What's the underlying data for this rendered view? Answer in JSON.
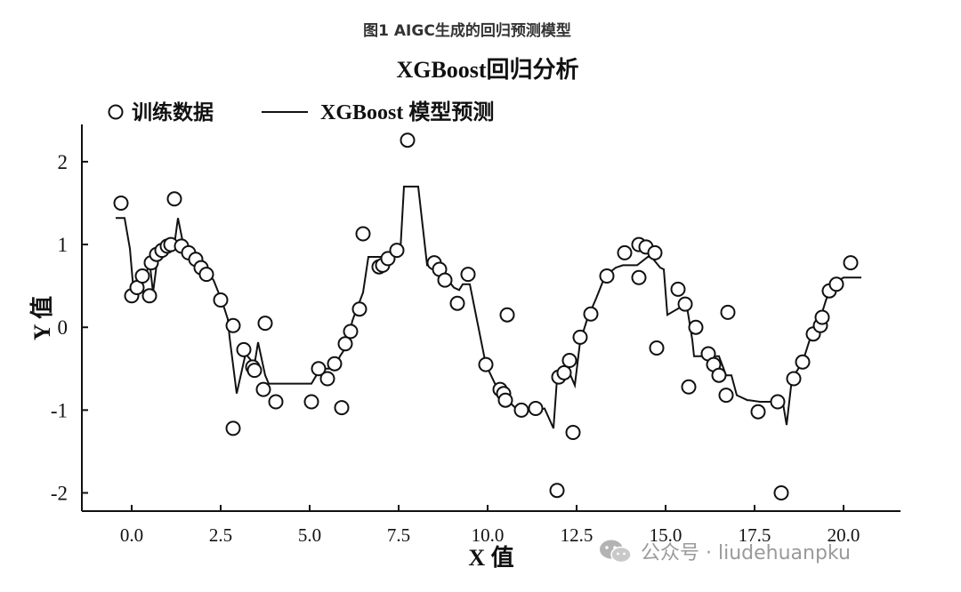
{
  "figure_caption": "图1 AIGC生成的回归预测模型",
  "watermark": "公众号 · liudehuanpku",
  "chart_data": {
    "type": "scatter",
    "title": "XGBoost回归分析",
    "xlabel": "X 值",
    "ylabel": "Y 值",
    "xlim": [
      -1.4,
      21.6
    ],
    "ylim": [
      -2.22,
      2.45
    ],
    "xticks": [
      "0.0",
      "2.5",
      "5.0",
      "7.5",
      "10.0",
      "12.5",
      "15.0",
      "17.5",
      "20.0"
    ],
    "xtick_values": [
      0,
      2.5,
      5,
      7.5,
      10,
      12.5,
      15,
      17.5,
      20
    ],
    "yticks": [
      "2",
      "1",
      "0",
      "-1",
      "-2"
    ],
    "ytick_values": [
      2,
      1,
      0,
      -1,
      -2
    ],
    "grid": false,
    "legend_position": "top-left",
    "series": [
      {
        "name": "训练数据",
        "kind": "scatter",
        "x": [
          -0.3,
          0.0,
          0.15,
          0.3,
          0.5,
          0.55,
          0.7,
          0.85,
          1.0,
          1.1,
          1.2,
          1.4,
          1.6,
          1.8,
          1.95,
          2.1,
          2.5,
          2.85,
          2.85,
          3.15,
          3.4,
          3.45,
          3.7,
          3.75,
          4.05,
          5.05,
          5.25,
          5.5,
          5.7,
          5.9,
          6.0,
          6.15,
          6.4,
          6.5,
          6.95,
          7.05,
          7.2,
          7.45,
          7.75,
          8.5,
          8.65,
          8.8,
          9.15,
          9.45,
          9.95,
          10.35,
          10.45,
          10.5,
          10.55,
          10.95,
          11.35,
          11.95,
          12.0,
          12.15,
          12.3,
          12.4,
          12.6,
          12.9,
          13.35,
          13.85,
          14.25,
          14.25,
          14.45,
          14.7,
          14.75,
          15.35,
          15.55,
          15.65,
          15.85,
          16.2,
          16.35,
          16.5,
          16.7,
          16.75,
          17.6,
          18.15,
          18.25,
          18.6,
          18.85,
          19.15,
          19.35,
          19.4,
          19.6,
          19.8,
          20.2
        ],
        "y": [
          1.5,
          0.38,
          0.48,
          0.62,
          0.38,
          0.78,
          0.88,
          0.93,
          0.98,
          1.0,
          1.55,
          0.98,
          0.9,
          0.82,
          0.72,
          0.64,
          0.33,
          0.02,
          -1.22,
          -0.27,
          -0.48,
          -0.52,
          -0.75,
          0.05,
          -0.9,
          -0.9,
          -0.5,
          -0.62,
          -0.44,
          -0.97,
          -0.2,
          -0.05,
          0.22,
          1.13,
          0.73,
          0.75,
          0.83,
          0.93,
          2.26,
          0.78,
          0.7,
          0.57,
          0.29,
          0.64,
          -0.45,
          -0.75,
          -0.8,
          -0.88,
          0.15,
          -1.0,
          -0.98,
          -1.97,
          -0.6,
          -0.55,
          -0.4,
          -1.27,
          -0.12,
          0.16,
          0.62,
          0.9,
          1.0,
          0.6,
          0.97,
          0.9,
          -0.25,
          0.46,
          0.28,
          -0.72,
          0.0,
          -0.32,
          -0.45,
          -0.58,
          -0.82,
          0.18,
          -1.02,
          -0.9,
          -2.0,
          -0.62,
          -0.42,
          -0.08,
          0.02,
          0.12,
          0.44,
          0.52,
          0.78
        ]
      },
      {
        "name": "XGBoost 模型预测",
        "kind": "line",
        "x": [
          -0.45,
          -0.2,
          -0.05,
          0.05,
          0.4,
          0.5,
          0.6,
          0.75,
          1.0,
          1.2,
          1.3,
          1.45,
          1.7,
          2.0,
          2.3,
          2.55,
          2.7,
          2.75,
          2.95,
          3.2,
          3.45,
          3.55,
          3.75,
          3.85,
          5.05,
          5.3,
          5.45,
          5.7,
          5.85,
          6.05,
          6.2,
          6.5,
          6.65,
          7.05,
          7.1,
          7.45,
          7.55,
          7.65,
          8.05,
          8.3,
          8.35,
          8.55,
          8.8,
          9.05,
          9.2,
          9.3,
          9.5,
          9.95,
          10.25,
          10.45,
          10.6,
          10.85,
          11.4,
          11.6,
          11.85,
          11.95,
          12.1,
          12.3,
          12.45,
          12.6,
          12.8,
          13.05,
          13.3,
          13.6,
          13.8,
          14.2,
          14.5,
          14.6,
          14.85,
          14.95,
          15.05,
          15.45,
          15.6,
          15.75,
          15.8,
          16.3,
          16.5,
          16.7,
          16.85,
          17.0,
          17.3,
          17.35,
          17.65,
          18.0,
          18.1,
          18.15,
          18.3,
          18.4,
          18.55,
          18.85,
          19.05,
          19.25,
          19.4,
          19.5,
          19.7,
          19.8,
          20.0,
          20.5
        ],
        "y": [
          1.32,
          1.32,
          0.95,
          0.45,
          0.62,
          0.8,
          0.42,
          0.92,
          1.0,
          1.0,
          1.32,
          1.0,
          0.88,
          0.72,
          0.57,
          0.3,
          0.1,
          -0.12,
          -0.8,
          -0.32,
          -0.45,
          -0.18,
          -0.58,
          -0.68,
          -0.68,
          -0.5,
          -0.5,
          -0.5,
          -0.35,
          -0.22,
          0.08,
          0.42,
          0.85,
          0.85,
          0.75,
          0.92,
          0.94,
          1.7,
          1.7,
          0.75,
          0.75,
          0.75,
          0.62,
          0.48,
          0.45,
          0.52,
          0.52,
          -0.45,
          -0.72,
          -0.74,
          -0.9,
          -1.0,
          -1.0,
          -0.98,
          -1.22,
          -0.62,
          -0.55,
          -0.55,
          -0.7,
          -0.17,
          0.1,
          0.35,
          0.62,
          0.72,
          0.75,
          0.75,
          0.85,
          0.85,
          0.72,
          0.7,
          0.15,
          0.25,
          0.25,
          -0.15,
          -0.35,
          -0.35,
          -0.35,
          -0.58,
          -0.58,
          -0.82,
          -0.88,
          -0.88,
          -0.9,
          -0.9,
          -0.9,
          -0.92,
          -0.92,
          -1.18,
          -0.62,
          -0.42,
          -0.15,
          0.08,
          0.18,
          0.32,
          0.55,
          0.55,
          0.6,
          0.6
        ]
      }
    ]
  }
}
